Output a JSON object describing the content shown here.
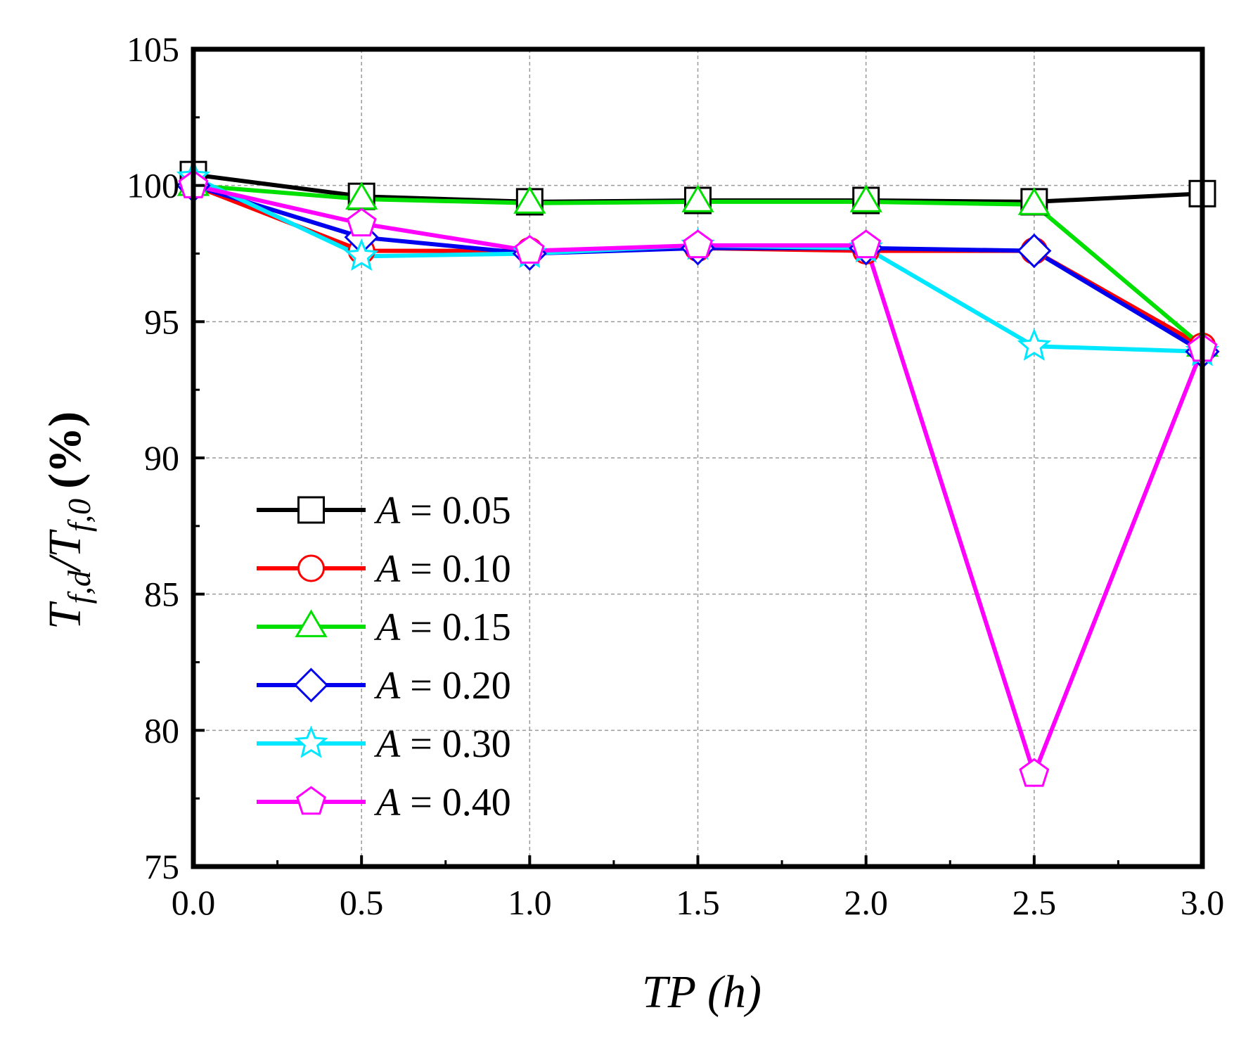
{
  "chart_data": {
    "type": "line",
    "xlabel": {
      "main": "TP",
      "unit": "(h)"
    },
    "ylabel": {
      "num_base": "T",
      "num_sub": "f,d",
      "slash": "/",
      "den_base": "T",
      "den_sub": "f,0",
      "unit": "(%)"
    },
    "xlim": [
      0,
      3
    ],
    "ylim": [
      75,
      105
    ],
    "x_ticks": [
      "0.0",
      "0.5",
      "1.0",
      "1.5",
      "2.0",
      "2.5",
      "3.0"
    ],
    "y_ticks": [
      "75",
      "80",
      "85",
      "90",
      "95",
      "100",
      "105"
    ],
    "grid": true,
    "legend_position": "lower-left",
    "x": [
      0,
      0.5,
      1.0,
      1.5,
      2.0,
      2.5,
      3.0
    ],
    "series": [
      {
        "name": "A = 0.05",
        "var": "A",
        "value": "0.05",
        "color": "#000000",
        "marker": "square",
        "values": [
          100.4,
          99.6,
          99.4,
          99.45,
          99.45,
          99.4,
          99.7
        ]
      },
      {
        "name": "A = 0.10",
        "var": "A",
        "value": "0.10",
        "color": "#ff0000",
        "marker": "circle",
        "values": [
          100.0,
          97.6,
          97.6,
          97.7,
          97.6,
          97.6,
          94.1
        ]
      },
      {
        "name": "A = 0.15",
        "var": "A",
        "value": "0.15",
        "color": "#00e000",
        "marker": "triangle",
        "values": [
          100.0,
          99.5,
          99.35,
          99.4,
          99.4,
          99.3,
          94.1
        ]
      },
      {
        "name": "A = 0.20",
        "var": "A",
        "value": "0.20",
        "color": "#0000ee",
        "marker": "diamond",
        "values": [
          100.0,
          98.1,
          97.5,
          97.7,
          97.7,
          97.6,
          93.9
        ]
      },
      {
        "name": "A = 0.30",
        "var": "A",
        "value": "0.30",
        "color": "#00e8ff",
        "marker": "star",
        "values": [
          100.3,
          97.4,
          97.5,
          97.8,
          97.7,
          94.1,
          93.9
        ]
      },
      {
        "name": "A = 0.40",
        "var": "A",
        "value": "0.40",
        "color": "#ff00ff",
        "marker": "pentagon",
        "values": [
          100.0,
          98.6,
          97.6,
          97.8,
          97.8,
          78.4,
          94.0
        ]
      }
    ]
  }
}
